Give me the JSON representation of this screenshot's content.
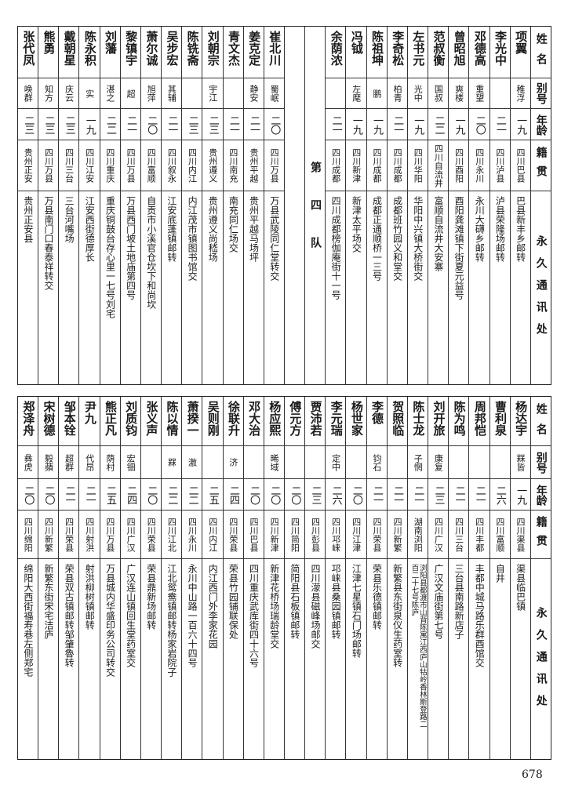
{
  "headers": {
    "name": "姓名",
    "alias": "别号",
    "age": "年龄",
    "origin": "籍贯",
    "address": "永久通讯处"
  },
  "team_label": "第四队",
  "top_right": [
    {
      "name": "项翼",
      "alias": "稚浮",
      "age": "一九",
      "origin": "四川巴县",
      "address": "巴县新丰乡邮转"
    },
    {
      "name": "李光中",
      "alias": "",
      "age": "二一",
      "origin": "四川泸县",
      "address": "泸县荣隆场邮转"
    },
    {
      "name": "邓德高",
      "alias": "重望",
      "age": "二〇",
      "origin": "四川永川",
      "address": "永川大礴乡邮转"
    },
    {
      "name": "曾昭旭",
      "alias": "爽楼",
      "age": "一九",
      "origin": "四川酉阳",
      "address": "酉阳龚滩镇下街夏元益号"
    },
    {
      "name": "范叔衡",
      "alias": "国叔",
      "age": "二二",
      "origin": "四川自流井",
      "address": "富顺自流井大安寨"
    },
    {
      "name": "左书元",
      "alias": "光中",
      "age": "一九",
      "origin": "四川华阳",
      "address": "华阳中兴镇大桥街交"
    },
    {
      "name": "李奇松",
      "alias": "柏青",
      "age": "二一",
      "origin": "四川成都",
      "address": "成都班竹园义和堂交"
    },
    {
      "name": "陈祖坤",
      "alias": "鹏",
      "age": "一九",
      "origin": "四川成都",
      "address": "成都正通顺桥一三号"
    },
    {
      "name": "冯钺",
      "alias": "左麾",
      "age": "一九",
      "origin": "四川新津",
      "address": "新津太平场交"
    },
    {
      "name": "余荫浓",
      "alias": "",
      "age": "二一",
      "origin": "四川成都",
      "address": "四川成都榜伽庵街十一号"
    }
  ],
  "top_left": [
    {
      "name": "崔北川",
      "alias": "蜀岷",
      "age": "二〇",
      "origin": "四川万县",
      "address": "万县武陵同仁堂转交"
    },
    {
      "name": "姜克定",
      "alias": "静安",
      "age": "二一",
      "origin": "贵州平越",
      "address": "贵州平越马场坪"
    },
    {
      "name": "青文杰",
      "alias": "",
      "age": "二一",
      "origin": "四川南充",
      "address": "南充同仁场交"
    },
    {
      "name": "刘朝宗",
      "alias": "宇江",
      "age": "二三",
      "origin": "贵州遵义",
      "address": "贵州遵义尚嵇场"
    },
    {
      "name": "陈铣斋",
      "alias": "",
      "age": "二三",
      "origin": "四川内江",
      "address": "内江茂市镇图书馆交"
    },
    {
      "name": "吴步宏",
      "alias": "其辅",
      "age": "二一",
      "origin": "四川叙永",
      "address": "江安底蓬镇邮转"
    },
    {
      "name": "萧尔诚",
      "alias": "旭萍",
      "age": "二〇",
      "origin": "四川富顺",
      "address": "自贡市小溪官仓坎下和尚坎"
    },
    {
      "name": "黎镇宇",
      "alias": "超",
      "age": "二一",
      "origin": "四川万县",
      "address": "万县西门坡土地庙第四号"
    },
    {
      "name": "刘藩",
      "alias": "湛之",
      "age": "二二",
      "origin": "四川重庆",
      "address": "重庆铜鼓台存心里一七号刘宅"
    },
    {
      "name": "陈永积",
      "alias": "实",
      "age": "一九",
      "origin": "四川江安",
      "address": "江安西街德厚长"
    },
    {
      "name": "戴朝星",
      "alias": "庆云",
      "age": "二三",
      "origin": "四川三台",
      "address": "三台河嘴场"
    },
    {
      "name": "熊勇",
      "alias": "知方",
      "age": "二三",
      "origin": "四川万县",
      "address": "万县南门口春泰祥转交"
    },
    {
      "name": "张代凤",
      "alias": "唤群",
      "age": "二三",
      "origin": "贵州正安",
      "address": "贵州正安县"
    }
  ],
  "bottom": [
    {
      "name": "杨达宇",
      "alias": "槑皆",
      "age": "一九",
      "origin": "四川渠县",
      "address": "渠县临巴镇"
    },
    {
      "name": "曹利泉",
      "alias": "",
      "age": "二六",
      "origin": "四川富顺",
      "address": "自井"
    },
    {
      "name": "周邦恺",
      "alias": "",
      "age": "二一",
      "origin": "四川丰都",
      "address": "丰都中城马路乐群酉馆交"
    },
    {
      "name": "陈为鸣",
      "alias": "",
      "age": "二一",
      "origin": "四川三台",
      "address": "三台县南路新店子"
    },
    {
      "name": "刘开旅",
      "alias": "康复",
      "age": "二三",
      "origin": "四川广汉",
      "address": "广汉文庙街第七号"
    },
    {
      "name": "陈士龙",
      "alias": "子惘",
      "age": "二一",
      "origin": "湖南浏阳",
      "address": "浏阳县都渡市山背陈寓江西庐山牯岭香林斯登路二百二十七号陈庐"
    },
    {
      "name": "贺照临",
      "alias": "",
      "age": "二一",
      "origin": "四川新繁",
      "address": "新繁县东街泉仪生药室转"
    },
    {
      "name": "李德",
      "alias": "钧石",
      "age": "二一",
      "origin": "四川荣县",
      "address": "荣县乐德镇邮转"
    },
    {
      "name": "杨世家",
      "alias": "",
      "age": "二〇",
      "origin": "四川江津",
      "address": "江津七星镇石门场邮转"
    },
    {
      "name": "李元瑞",
      "alias": "定中",
      "age": "二六",
      "origin": "四川邛崃",
      "address": "邛崃县桑园镇邮转"
    },
    {
      "name": "贾沛若",
      "alias": "",
      "age": "二三",
      "origin": "四川彭县",
      "address": "四川濛县磁峰场邮交"
    },
    {
      "name": "傅元方",
      "alias": "",
      "age": "二〇",
      "origin": "四川简阳",
      "address": "简阳县石板镇邮转"
    },
    {
      "name": "杨应熙",
      "alias": "晞域",
      "age": "二〇",
      "origin": "四川新津",
      "address": "新津花桥场瑞龄堂交"
    },
    {
      "name": "邓大治",
      "alias": "",
      "age": "二〇",
      "origin": "四川巴县",
      "address": "四川重庆武库街四十六号"
    },
    {
      "name": "徐联升",
      "alias": "济",
      "age": "二四",
      "origin": "四川荣县",
      "address": "荣县竹园铺联保处"
    },
    {
      "name": "吴则刚",
      "alias": "",
      "age": "二五",
      "origin": "四川内江",
      "address": "内江西门外李家花园"
    },
    {
      "name": "萧揆一",
      "alias": "激",
      "age": "二二",
      "origin": "四川永川",
      "address": "永川中山路一百六十四号"
    },
    {
      "name": "陈以情",
      "alias": "槑",
      "age": "二二",
      "origin": "四川江北",
      "address": "江北鸳鸯镇邮转杨家岩院子"
    },
    {
      "name": "张义声",
      "alias": "",
      "age": "二〇",
      "origin": "四川荣县",
      "address": "荣县鼎新场邮转"
    },
    {
      "name": "刘质钧",
      "alias": "宏钿",
      "age": "二四",
      "origin": "四川广汉",
      "address": "广汉连山镇回生堂药室交"
    },
    {
      "name": "熊正凡",
      "alias": "荫村",
      "age": "二五",
      "origin": "四川万县",
      "address": "万县城内华盛印务公司转交"
    },
    {
      "name": "尹九",
      "alias": "代昂",
      "age": "二一",
      "origin": "四川射洪",
      "address": "射洪柳树镇邮转"
    },
    {
      "name": "邹本铨",
      "alias": "超群",
      "age": "二一",
      "origin": "四川荣县",
      "address": "荣县双古镇邮转邹肇魯转"
    },
    {
      "name": "宋树德",
      "alias": "毅蘋",
      "age": "二〇",
      "origin": "四川新繁",
      "address": "新繁东街宋宅洁庐"
    },
    {
      "name": "郑泽舟",
      "alias": "彝虎",
      "age": "二〇",
      "origin": "四川绵阳",
      "address": "绵阳大西街福寿巷左侧郑宅"
    }
  ],
  "page_number": "678"
}
